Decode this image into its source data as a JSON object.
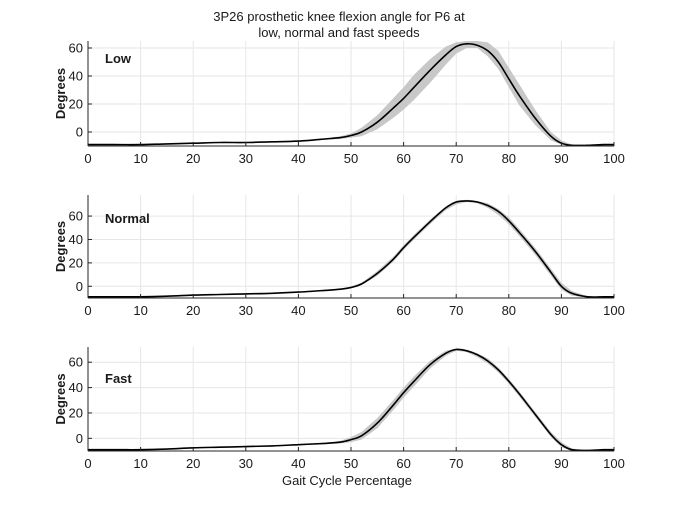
{
  "figure": {
    "title_line1": "3P26 prosthetic knee flexion angle for P6 at",
    "title_line2": "low, normal and fast speeds",
    "xlabel": "Gait Cycle Percentage"
  },
  "colors": {
    "mean_line": "#000000",
    "band": "#c8c8c8",
    "grid": "#e6e6e6",
    "axis": "#262626"
  },
  "chart_data": [
    {
      "type": "line",
      "panel_label": "Low",
      "ylabel": "Degrees",
      "xlim": [
        0,
        100
      ],
      "ylim": [
        -10,
        65
      ],
      "xticks": [
        0,
        10,
        20,
        30,
        40,
        50,
        60,
        70,
        80,
        90,
        100
      ],
      "yticks": [
        0,
        20,
        40,
        60
      ],
      "grid": true,
      "x": [
        0,
        5,
        10,
        15,
        20,
        25,
        30,
        35,
        40,
        45,
        48,
        50,
        52,
        55,
        58,
        60,
        62,
        65,
        68,
        70,
        72,
        74,
        76,
        78,
        80,
        82,
        85,
        88,
        90,
        92,
        95,
        98,
        100
      ],
      "mean": [
        -9,
        -9,
        -9,
        -8.5,
        -8,
        -7.5,
        -7.5,
        -7,
        -6.5,
        -5,
        -4,
        -2.5,
        0,
        7,
        17,
        24,
        32,
        44,
        55,
        61,
        63,
        62,
        58,
        50,
        38,
        26,
        10,
        -3,
        -8,
        -9.5,
        -9.5,
        -9,
        -9
      ],
      "band_upper": [
        -9,
        -9,
        -9,
        -8.5,
        -8,
        -7.5,
        -7.5,
        -7,
        -6.5,
        -4.5,
        -3,
        -1,
        3,
        12,
        24,
        32,
        41,
        52,
        61,
        64,
        65,
        65,
        64,
        58,
        46,
        34,
        16,
        0,
        -6,
        -9,
        -9.5,
        -9,
        -9
      ],
      "band_lower": [
        -9,
        -9,
        -9,
        -8.5,
        -8,
        -7.5,
        -7.5,
        -7,
        -6.5,
        -5.5,
        -5,
        -4,
        -3,
        2,
        10,
        16,
        23,
        35,
        48,
        56,
        60,
        60,
        54,
        45,
        32,
        19,
        5,
        -6,
        -9,
        -10,
        -10,
        -9.5,
        -9
      ]
    },
    {
      "type": "line",
      "panel_label": "Normal",
      "ylabel": "Degrees",
      "xlim": [
        0,
        100
      ],
      "ylim": [
        -10,
        78
      ],
      "xticks": [
        0,
        10,
        20,
        30,
        40,
        50,
        60,
        70,
        80,
        90,
        100
      ],
      "yticks": [
        0,
        20,
        40,
        60
      ],
      "grid": true,
      "x": [
        0,
        5,
        10,
        15,
        20,
        25,
        30,
        35,
        40,
        45,
        48,
        50,
        52,
        55,
        58,
        60,
        62,
        65,
        68,
        70,
        72,
        74,
        76,
        78,
        80,
        82,
        85,
        88,
        90,
        92,
        95,
        98,
        100
      ],
      "mean": [
        -9,
        -9,
        -9,
        -8.5,
        -7.5,
        -7,
        -6.5,
        -6,
        -5,
        -3.5,
        -2.5,
        -1,
        2,
        11,
        23,
        33,
        42,
        55,
        67,
        72,
        73,
        72,
        69,
        64,
        56,
        46,
        30,
        12,
        0,
        -6,
        -9,
        -9,
        -9
      ],
      "band_upper": [
        -9,
        -9,
        -9,
        -8.5,
        -7.5,
        -7,
        -6.5,
        -6,
        -5,
        -3,
        -2,
        0,
        3,
        13,
        25,
        35,
        44,
        57,
        68,
        73,
        74,
        73,
        71,
        66,
        59,
        49,
        33,
        15,
        3,
        -4,
        -8.5,
        -9,
        -9
      ],
      "band_lower": [
        -9,
        -9,
        -9,
        -8.5,
        -7.5,
        -7,
        -6.5,
        -6,
        -5,
        -4,
        -3,
        -2,
        1,
        9,
        21,
        31,
        40,
        53,
        65,
        70,
        72,
        71,
        67,
        61,
        53,
        43,
        27,
        9,
        -3,
        -8,
        -9.5,
        -9,
        -9
      ]
    },
    {
      "type": "line",
      "panel_label": "Fast",
      "ylabel": "Degrees",
      "xlim": [
        0,
        100
      ],
      "ylim": [
        -10,
        72
      ],
      "xticks": [
        0,
        10,
        20,
        30,
        40,
        50,
        60,
        70,
        80,
        90,
        100
      ],
      "yticks": [
        0,
        20,
        40,
        60
      ],
      "grid": true,
      "x": [
        0,
        5,
        10,
        15,
        20,
        25,
        30,
        35,
        40,
        45,
        48,
        50,
        52,
        55,
        58,
        60,
        62,
        65,
        68,
        70,
        72,
        74,
        76,
        78,
        80,
        82,
        85,
        88,
        90,
        92,
        95,
        98,
        100
      ],
      "mean": [
        -9,
        -9,
        -9,
        -8.5,
        -7.5,
        -7,
        -6.5,
        -6,
        -5,
        -4,
        -3,
        -1,
        2,
        12,
        26,
        36,
        45,
        58,
        67,
        70,
        69,
        66,
        61,
        54,
        45,
        35,
        19,
        3,
        -5,
        -9,
        -9.5,
        -9,
        -9
      ],
      "band_upper": [
        -9,
        -9,
        -9,
        -8.5,
        -7.5,
        -7,
        -6.5,
        -6,
        -5,
        -3.5,
        -2,
        1,
        5,
        16,
        30,
        40,
        49,
        61,
        69,
        71,
        70,
        67,
        63,
        56,
        47,
        37,
        21,
        5,
        -3,
        -8,
        -9.5,
        -9,
        -9
      ],
      "band_lower": [
        -9,
        -9,
        -9,
        -8.5,
        -7.5,
        -7,
        -6.5,
        -6,
        -5,
        -4.5,
        -4,
        -3,
        -1,
        8,
        22,
        32,
        41,
        55,
        65,
        69,
        68,
        64,
        59,
        52,
        43,
        33,
        17,
        1,
        -7,
        -10,
        -10,
        -9.5,
        -9
      ]
    }
  ]
}
